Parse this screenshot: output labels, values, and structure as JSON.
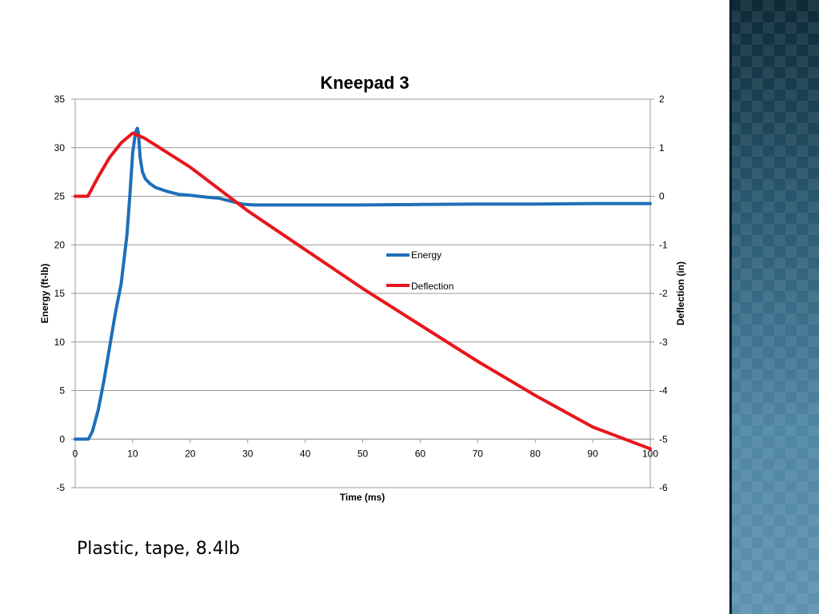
{
  "caption": "Plastic, tape, 8.4lb",
  "colors": {
    "energy": "#1f6fb8",
    "deflection": "#e8161b",
    "grid": "#9a9a9a",
    "sidebar": "#2a5a72"
  },
  "chart_data": {
    "type": "line",
    "title": "Kneepad 3",
    "xlabel": "Time (ms)",
    "ylabel": "Energy (ft-lb)",
    "y2label": "Deflection (in)",
    "xlim": [
      0,
      100
    ],
    "ylim": [
      -5,
      35
    ],
    "y2lim": [
      -6,
      2
    ],
    "x_ticks": [
      "0",
      "10",
      "20",
      "30",
      "40",
      "50",
      "60",
      "70",
      "80",
      "90",
      "100"
    ],
    "y_ticks": [
      "-5",
      "0",
      "5",
      "10",
      "15",
      "20",
      "25",
      "30",
      "35"
    ],
    "y2_ticks": [
      "-6",
      "-5",
      "-4",
      "-3",
      "-2",
      "-1",
      "0",
      "1",
      "2"
    ],
    "grid": true,
    "legend": "right-center",
    "series": [
      {
        "name": "Energy",
        "axis": "left",
        "x": [
          0,
          2.3,
          3,
          4,
          5,
          6,
          7,
          8,
          9,
          9.5,
          10,
          10.5,
          10.8,
          11,
          11.3,
          11.7,
          12.2,
          13,
          14,
          16,
          18,
          20,
          23,
          25,
          27,
          29,
          31,
          40,
          50,
          60,
          70,
          80,
          90,
          100
        ],
        "values": [
          0,
          0,
          0.8,
          3,
          6,
          9.5,
          13,
          16,
          21,
          25,
          29.5,
          31.6,
          32,
          31.5,
          29,
          27.5,
          26.8,
          26.3,
          25.9,
          25.5,
          25.2,
          25.1,
          24.9,
          24.8,
          24.5,
          24.2,
          24.1,
          24.1,
          24.1,
          24.15,
          24.2,
          24.2,
          24.25,
          24.25
        ]
      },
      {
        "name": "Deflection",
        "axis": "right",
        "x": [
          0,
          2.2,
          4,
          6,
          8,
          10,
          11,
          12,
          20,
          30,
          40,
          50,
          60,
          70,
          80,
          90,
          100
        ],
        "values": [
          0,
          0,
          0.4,
          0.8,
          1.1,
          1.3,
          1.25,
          1.2,
          0.6,
          -0.3,
          -1.1,
          -1.9,
          -2.65,
          -3.4,
          -4.1,
          -4.75,
          -5.2
        ]
      }
    ]
  }
}
